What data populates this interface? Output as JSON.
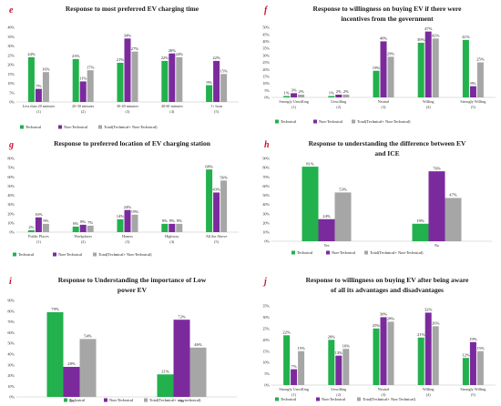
{
  "colors": {
    "technical": "#22b14c",
    "non_technical": "#7b2a9e",
    "total": "#a6a6a6",
    "letter": "#c8102e"
  },
  "chart_data": [
    {
      "id": "e",
      "letter": "e",
      "type": "bar",
      "title": [
        "Response to most preferred EV charging time"
      ],
      "categories": [
        [
          "Less than 20 minutes",
          "(1)"
        ],
        [
          "20-30 minutes",
          "(2)"
        ],
        [
          "30-40 minutes",
          "(3)"
        ],
        [
          "40-60 minutes",
          "(4)"
        ],
        [
          "1+ hour",
          "(5)"
        ]
      ],
      "series": [
        {
          "name": "Technical",
          "values": [
            24,
            23,
            21,
            22,
            9
          ]
        },
        {
          "name": "Non-Technical",
          "values": [
            7,
            11,
            34,
            26,
            22
          ]
        },
        {
          "name": "Total(Technical+ Non-Technical)",
          "values": [
            16,
            17,
            27,
            24,
            15
          ]
        }
      ],
      "ylim": [
        0,
        40
      ],
      "yticks": [
        0,
        5,
        10,
        15,
        20,
        25,
        30,
        35,
        40
      ],
      "legend_position": "bottom",
      "grid": false
    },
    {
      "id": "f",
      "letter": "f",
      "type": "bar",
      "title": [
        "Response to willingness on buying EV if there were",
        "incentives from the government"
      ],
      "categories": [
        [
          "Strongly Unwilling",
          "(1)"
        ],
        [
          "Unwilling",
          "(2)"
        ],
        [
          "Neutral",
          "(3)"
        ],
        [
          "Willing",
          "(4)"
        ],
        [
          "Strongly Willing",
          "(5)"
        ]
      ],
      "series": [
        {
          "name": "Technical",
          "values": [
            1,
            1,
            19,
            39,
            41
          ]
        },
        {
          "name": "Non-Technical",
          "values": [
            3,
            2,
            40,
            47,
            8
          ]
        },
        {
          "name": "Total(Technical+ Non-Technical)",
          "values": [
            2,
            2,
            29,
            42,
            25
          ]
        }
      ],
      "ylim": [
        0,
        50
      ],
      "yticks": [
        0,
        5,
        10,
        15,
        20,
        25,
        30,
        35,
        40,
        45,
        50
      ],
      "legend_position": "bottom",
      "grid": false
    },
    {
      "id": "g",
      "letter": "g",
      "type": "bar",
      "title": [
        "Response to preferred location of EV charging station"
      ],
      "categories": [
        [
          "Public Places",
          "(1)"
        ],
        [
          "Workplaces",
          "(2)"
        ],
        [
          "Homes",
          "(3)"
        ],
        [
          "Highway",
          "(4)"
        ],
        [
          "All the Above",
          "(5)"
        ]
      ],
      "series": [
        {
          "name": "Technical",
          "values": [
            2,
            6,
            14,
            9,
            68
          ]
        },
        {
          "name": "Non-Technical",
          "values": [
            16,
            8,
            24,
            9,
            43
          ]
        },
        {
          "name": "Total(Technical+ Non-Technical)",
          "values": [
            9,
            7,
            19,
            9,
            56
          ]
        }
      ],
      "ylim": [
        0,
        80
      ],
      "yticks": [
        0,
        10,
        20,
        30,
        40,
        50,
        60,
        70,
        80
      ],
      "legend_position": "bottom",
      "grid": false
    },
    {
      "id": "h",
      "letter": "h",
      "type": "bar",
      "title": [
        "Response to understanding the difference between EV",
        "and ICE"
      ],
      "categories": [
        [
          "Yes"
        ],
        [
          "No"
        ]
      ],
      "series": [
        {
          "name": "Technical",
          "values": [
            81,
            19
          ]
        },
        {
          "name": "Non-Technical",
          "values": [
            24,
            76
          ]
        },
        {
          "name": "Total(Technical+ Non-Technical)",
          "values": [
            53,
            47
          ]
        }
      ],
      "ylim": [
        0,
        90
      ],
      "yticks": [
        0,
        10,
        20,
        30,
        40,
        50,
        60,
        70,
        80,
        90
      ],
      "legend_position": "bottom",
      "grid": false
    },
    {
      "id": "i",
      "letter": "i",
      "type": "bar",
      "title": [
        "Response to Understanding the importance of Low",
        "power EV"
      ],
      "categories": [
        [
          "Yes"
        ],
        [
          "No"
        ]
      ],
      "series": [
        {
          "name": "Technical",
          "values": [
            79,
            21
          ]
        },
        {
          "name": "Non-Technical",
          "values": [
            28,
            72
          ]
        },
        {
          "name": "Total(Technical+ non-technical)",
          "values": [
            54,
            46
          ]
        }
      ],
      "ylim": [
        0,
        90
      ],
      "yticks": [
        0,
        10,
        20,
        30,
        40,
        50,
        60,
        70,
        80,
        90
      ],
      "legend_position": "bottom",
      "grid": false
    },
    {
      "id": "j",
      "letter": "j",
      "type": "bar",
      "title": [
        "Response to willingness on buying EV after being aware",
        "of all its advantages and disadvantages"
      ],
      "categories": [
        [
          "Strongly Unwilling",
          "(1)"
        ],
        [
          "Unwilling",
          "(2)"
        ],
        [
          "Neutral",
          "(3)"
        ],
        [
          "Willing",
          "(4)"
        ],
        [
          "Strongly Willing",
          "(5)"
        ]
      ],
      "series": [
        {
          "name": "Technical",
          "values": [
            22,
            20,
            25,
            21,
            12
          ]
        },
        {
          "name": "Non-Technical",
          "values": [
            7,
            13,
            30,
            32,
            19
          ]
        },
        {
          "name": "Total(Technical+ Non Technical)",
          "values": [
            15,
            16,
            28,
            26,
            15
          ]
        }
      ],
      "ylim": [
        0,
        35
      ],
      "yticks": [
        0,
        5,
        10,
        15,
        20,
        25,
        30,
        35
      ],
      "legend_position": "bottom",
      "grid": false
    }
  ]
}
